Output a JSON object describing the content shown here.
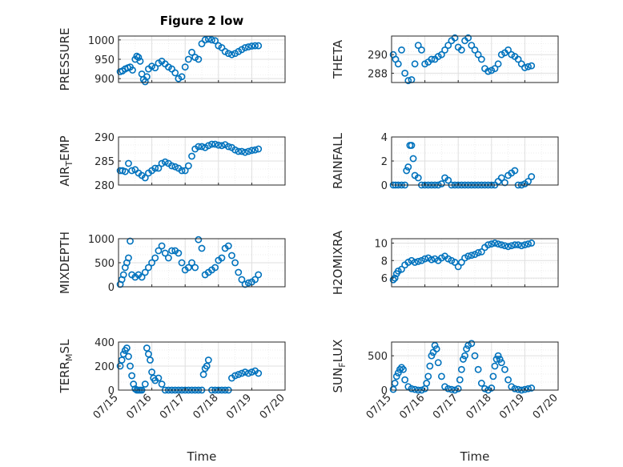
{
  "chart_data": [
    {
      "type": "scatter",
      "title": "Figure 2 low",
      "ylabel": "PRESSURE",
      "xlabel": "",
      "xlim": [
        0,
        5
      ],
      "ylim": [
        890,
        1010
      ],
      "yticks": [
        900,
        950,
        1000
      ],
      "xticks": [],
      "grid": true,
      "series": [
        {
          "x": [
            0.05,
            0.12,
            0.2,
            0.28,
            0.35,
            0.42,
            0.5,
            0.55,
            0.6,
            0.65,
            0.7,
            0.75,
            0.8,
            0.85,
            0.9,
            1.0,
            1.1,
            1.2,
            1.3,
            1.4,
            1.5,
            1.6,
            1.7,
            1.8,
            1.9,
            2.0,
            2.1,
            2.2,
            2.3,
            2.4,
            2.5,
            2.6,
            2.7,
            2.8,
            2.9,
            3.0,
            3.1,
            3.2,
            3.3,
            3.4,
            3.5,
            3.6,
            3.7,
            3.8,
            3.9,
            4.0,
            4.1,
            4.2
          ],
          "y": [
            918,
            920,
            925,
            928,
            930,
            922,
            950,
            958,
            955,
            945,
            912,
            898,
            892,
            905,
            925,
            932,
            928,
            940,
            945,
            938,
            930,
            925,
            915,
            900,
            905,
            930,
            950,
            968,
            955,
            950,
            990,
            1000,
            1002,
            1000,
            998,
            985,
            980,
            970,
            965,
            962,
            965,
            970,
            975,
            980,
            982,
            984,
            985,
            985
          ]
        }
      ]
    },
    {
      "type": "scatter",
      "title": "",
      "ylabel": "THETA",
      "xlabel": "",
      "xlim": [
        0,
        5
      ],
      "ylim": [
        287,
        292
      ],
      "yticks": [
        288,
        290
      ],
      "xticks": [],
      "grid": true,
      "series": [
        {
          "x": [
            0.05,
            0.12,
            0.2,
            0.3,
            0.4,
            0.5,
            0.6,
            0.7,
            0.8,
            0.9,
            1.0,
            1.1,
            1.2,
            1.3,
            1.4,
            1.5,
            1.6,
            1.7,
            1.8,
            1.9,
            2.0,
            2.1,
            2.2,
            2.3,
            2.4,
            2.5,
            2.6,
            2.7,
            2.8,
            2.9,
            3.0,
            3.1,
            3.2,
            3.3,
            3.4,
            3.5,
            3.6,
            3.7,
            3.8,
            3.9,
            4.0,
            4.1,
            4.2
          ],
          "y": [
            290,
            289.5,
            289,
            290.5,
            288,
            287.2,
            287.3,
            289,
            291,
            290.5,
            289,
            289.2,
            289.5,
            289.5,
            289.8,
            290,
            290.5,
            291,
            291.5,
            291.8,
            290.8,
            290.5,
            291.5,
            291.8,
            291,
            290.5,
            290,
            289.5,
            288.5,
            288.2,
            288.3,
            288.5,
            289,
            290,
            290.2,
            290.5,
            290,
            289.8,
            289.5,
            289,
            288.6,
            288.7,
            288.8
          ]
        }
      ]
    },
    {
      "type": "scatter",
      "title": "",
      "ylabel": "AIR_TEMP",
      "xlabel": "",
      "xlim": [
        0,
        5
      ],
      "ylim": [
        280,
        290
      ],
      "yticks": [
        280,
        285,
        290
      ],
      "xticks": [],
      "grid": true,
      "series": [
        {
          "x": [
            0.05,
            0.12,
            0.2,
            0.3,
            0.4,
            0.5,
            0.6,
            0.7,
            0.8,
            0.9,
            1.0,
            1.1,
            1.2,
            1.3,
            1.4,
            1.5,
            1.6,
            1.7,
            1.8,
            1.9,
            2.0,
            2.1,
            2.2,
            2.3,
            2.4,
            2.5,
            2.6,
            2.7,
            2.8,
            2.9,
            3.0,
            3.1,
            3.2,
            3.3,
            3.4,
            3.5,
            3.6,
            3.7,
            3.8,
            3.9,
            4.0,
            4.1,
            4.2
          ],
          "y": [
            283,
            283,
            282.8,
            284.5,
            283,
            283.2,
            282.5,
            282,
            281.5,
            282.5,
            283,
            283.5,
            283.5,
            284.5,
            284.8,
            284.5,
            284,
            283.8,
            283.5,
            283,
            283,
            284,
            286,
            287.5,
            288,
            288,
            287.8,
            288.2,
            288.5,
            288.5,
            288.3,
            288.2,
            288.4,
            288,
            287.8,
            287.3,
            287,
            287,
            286.8,
            287,
            287.2,
            287.3,
            287.5
          ]
        }
      ]
    },
    {
      "type": "scatter",
      "title": "",
      "ylabel": "RAINFALL",
      "xlabel": "",
      "xlim": [
        0,
        5
      ],
      "ylim": [
        0,
        4
      ],
      "yticks": [
        0,
        2,
        4
      ],
      "xticks": [],
      "grid": true,
      "series": [
        {
          "x": [
            0.05,
            0.12,
            0.2,
            0.3,
            0.4,
            0.45,
            0.5,
            0.55,
            0.6,
            0.65,
            0.7,
            0.8,
            0.9,
            1.0,
            1.1,
            1.2,
            1.3,
            1.4,
            1.5,
            1.6,
            1.7,
            1.8,
            1.9,
            2.0,
            2.1,
            2.2,
            2.3,
            2.4,
            2.5,
            2.6,
            2.7,
            2.8,
            2.9,
            3.0,
            3.1,
            3.2,
            3.3,
            3.4,
            3.5,
            3.6,
            3.7,
            3.8,
            3.9,
            4.0,
            4.1,
            4.2
          ],
          "y": [
            0,
            0,
            0,
            0,
            0,
            1.2,
            1.5,
            3.3,
            3.3,
            2.2,
            0.8,
            0.6,
            0,
            0,
            0,
            0,
            0,
            0,
            0.1,
            0.6,
            0.4,
            0,
            0,
            0,
            0,
            0,
            0,
            0,
            0,
            0,
            0,
            0,
            0,
            0,
            0,
            0.3,
            0.6,
            0.2,
            0.8,
            1.0,
            1.2,
            0,
            0,
            0.1,
            0.3,
            0.7
          ]
        }
      ]
    },
    {
      "type": "scatter",
      "title": "",
      "ylabel": "MIXDEPTH",
      "xlabel": "",
      "xlim": [
        0,
        5
      ],
      "ylim": [
        0,
        1000
      ],
      "yticks": [
        0,
        500,
        1000
      ],
      "xticks": [],
      "grid": true,
      "series": [
        {
          "x": [
            0.05,
            0.1,
            0.15,
            0.2,
            0.25,
            0.3,
            0.35,
            0.4,
            0.5,
            0.6,
            0.7,
            0.8,
            0.9,
            1.0,
            1.1,
            1.2,
            1.3,
            1.4,
            1.5,
            1.6,
            1.7,
            1.8,
            1.9,
            2.0,
            2.1,
            2.2,
            2.3,
            2.4,
            2.5,
            2.6,
            2.7,
            2.8,
            2.9,
            3.0,
            3.1,
            3.2,
            3.3,
            3.4,
            3.5,
            3.6,
            3.7,
            3.8,
            3.9,
            4.0,
            4.1,
            4.2
          ],
          "y": [
            50,
            150,
            250,
            400,
            500,
            600,
            950,
            250,
            200,
            250,
            200,
            300,
            400,
            500,
            600,
            750,
            850,
            700,
            600,
            750,
            750,
            700,
            500,
            350,
            400,
            500,
            400,
            980,
            800,
            250,
            300,
            350,
            400,
            550,
            600,
            800,
            850,
            650,
            500,
            300,
            150,
            50,
            80,
            100,
            150,
            250
          ]
        }
      ]
    },
    {
      "type": "scatter",
      "title": "",
      "ylabel": "H2OMIXRA",
      "xlabel": "",
      "xlim": [
        0,
        5
      ],
      "ylim": [
        5,
        10.5
      ],
      "yticks": [
        6,
        8,
        10
      ],
      "xticks": [],
      "grid": true,
      "series": [
        {
          "x": [
            0.05,
            0.1,
            0.15,
            0.2,
            0.3,
            0.4,
            0.5,
            0.6,
            0.7,
            0.8,
            0.9,
            1.0,
            1.1,
            1.2,
            1.3,
            1.4,
            1.5,
            1.6,
            1.7,
            1.8,
            1.9,
            2.0,
            2.1,
            2.2,
            2.3,
            2.4,
            2.5,
            2.6,
            2.7,
            2.8,
            2.9,
            3.0,
            3.1,
            3.2,
            3.3,
            3.4,
            3.5,
            3.6,
            3.7,
            3.8,
            3.9,
            4.0,
            4.1,
            4.2
          ],
          "y": [
            5.8,
            6.0,
            6.5,
            6.8,
            7.0,
            7.5,
            7.8,
            8.0,
            7.8,
            7.9,
            8.0,
            8.2,
            8.3,
            8.1,
            8.2,
            8.0,
            8.3,
            8.5,
            8.2,
            8.0,
            7.8,
            7.3,
            7.8,
            8.3,
            8.5,
            8.6,
            8.7,
            8.9,
            9.0,
            9.5,
            9.8,
            9.9,
            10.0,
            9.9,
            9.8,
            9.7,
            9.6,
            9.7,
            9.8,
            9.8,
            9.7,
            9.8,
            9.9,
            10.0
          ]
        }
      ]
    },
    {
      "type": "scatter",
      "title": "",
      "ylabel": "TERR_MSL",
      "xlabel": "Time",
      "xlim": [
        0,
        5
      ],
      "ylim": [
        0,
        400
      ],
      "yticks": [
        0,
        200,
        400
      ],
      "xticks": [
        "07/15",
        "07/16",
        "07/17",
        "07/18",
        "07/19",
        "07/20"
      ],
      "grid": true,
      "series": [
        {
          "x": [
            0.05,
            0.1,
            0.15,
            0.2,
            0.25,
            0.3,
            0.35,
            0.4,
            0.45,
            0.5,
            0.55,
            0.6,
            0.65,
            0.7,
            0.8,
            0.85,
            0.9,
            0.95,
            1.0,
            1.05,
            1.1,
            1.2,
            1.3,
            1.4,
            1.5,
            1.6,
            1.7,
            1.8,
            1.9,
            2.0,
            2.1,
            2.2,
            2.3,
            2.4,
            2.5,
            2.55,
            2.6,
            2.65,
            2.7,
            2.8,
            2.9,
            3.0,
            3.1,
            3.2,
            3.3,
            3.4,
            3.5,
            3.6,
            3.7,
            3.8,
            3.9,
            4.0,
            4.1,
            4.2
          ],
          "y": [
            200,
            250,
            300,
            330,
            350,
            280,
            200,
            120,
            50,
            10,
            0,
            0,
            0,
            0,
            50,
            350,
            300,
            250,
            150,
            100,
            80,
            100,
            50,
            0,
            0,
            0,
            0,
            0,
            0,
            0,
            0,
            0,
            0,
            0,
            0,
            130,
            180,
            200,
            250,
            0,
            0,
            0,
            0,
            0,
            0,
            100,
            120,
            130,
            140,
            150,
            140,
            150,
            160,
            140
          ]
        }
      ]
    },
    {
      "type": "scatter",
      "title": "",
      "ylabel": "SUN_FLUX",
      "xlabel": "Time",
      "xlim": [
        0,
        5
      ],
      "ylim": [
        0,
        700
      ],
      "yticks": [
        0,
        500
      ],
      "xticks": [
        "07/15",
        "07/16",
        "07/17",
        "07/18",
        "07/19",
        "07/20"
      ],
      "grid": true,
      "series": [
        {
          "x": [
            0.05,
            0.1,
            0.15,
            0.2,
            0.25,
            0.3,
            0.35,
            0.4,
            0.5,
            0.6,
            0.7,
            0.8,
            0.9,
            1.0,
            1.05,
            1.1,
            1.15,
            1.2,
            1.25,
            1.3,
            1.35,
            1.4,
            1.5,
            1.6,
            1.7,
            1.8,
            1.9,
            2.0,
            2.05,
            2.1,
            2.15,
            2.2,
            2.25,
            2.3,
            2.4,
            2.5,
            2.6,
            2.7,
            2.8,
            2.9,
            3.0,
            3.05,
            3.1,
            3.15,
            3.2,
            3.25,
            3.3,
            3.4,
            3.5,
            3.6,
            3.7,
            3.8,
            3.9,
            4.0,
            4.1,
            4.2
          ],
          "y": [
            10,
            100,
            200,
            250,
            300,
            330,
            300,
            150,
            50,
            20,
            10,
            0,
            0,
            20,
            100,
            200,
            350,
            500,
            550,
            650,
            600,
            400,
            200,
            50,
            20,
            10,
            0,
            20,
            150,
            300,
            450,
            500,
            600,
            650,
            680,
            500,
            300,
            100,
            20,
            0,
            30,
            200,
            350,
            450,
            500,
            450,
            400,
            300,
            150,
            50,
            20,
            10,
            0,
            10,
            20,
            30
          ]
        }
      ]
    }
  ],
  "colors": {
    "marker": "#0072BD",
    "axis": "#262626",
    "grid": "#DFDFDF"
  }
}
